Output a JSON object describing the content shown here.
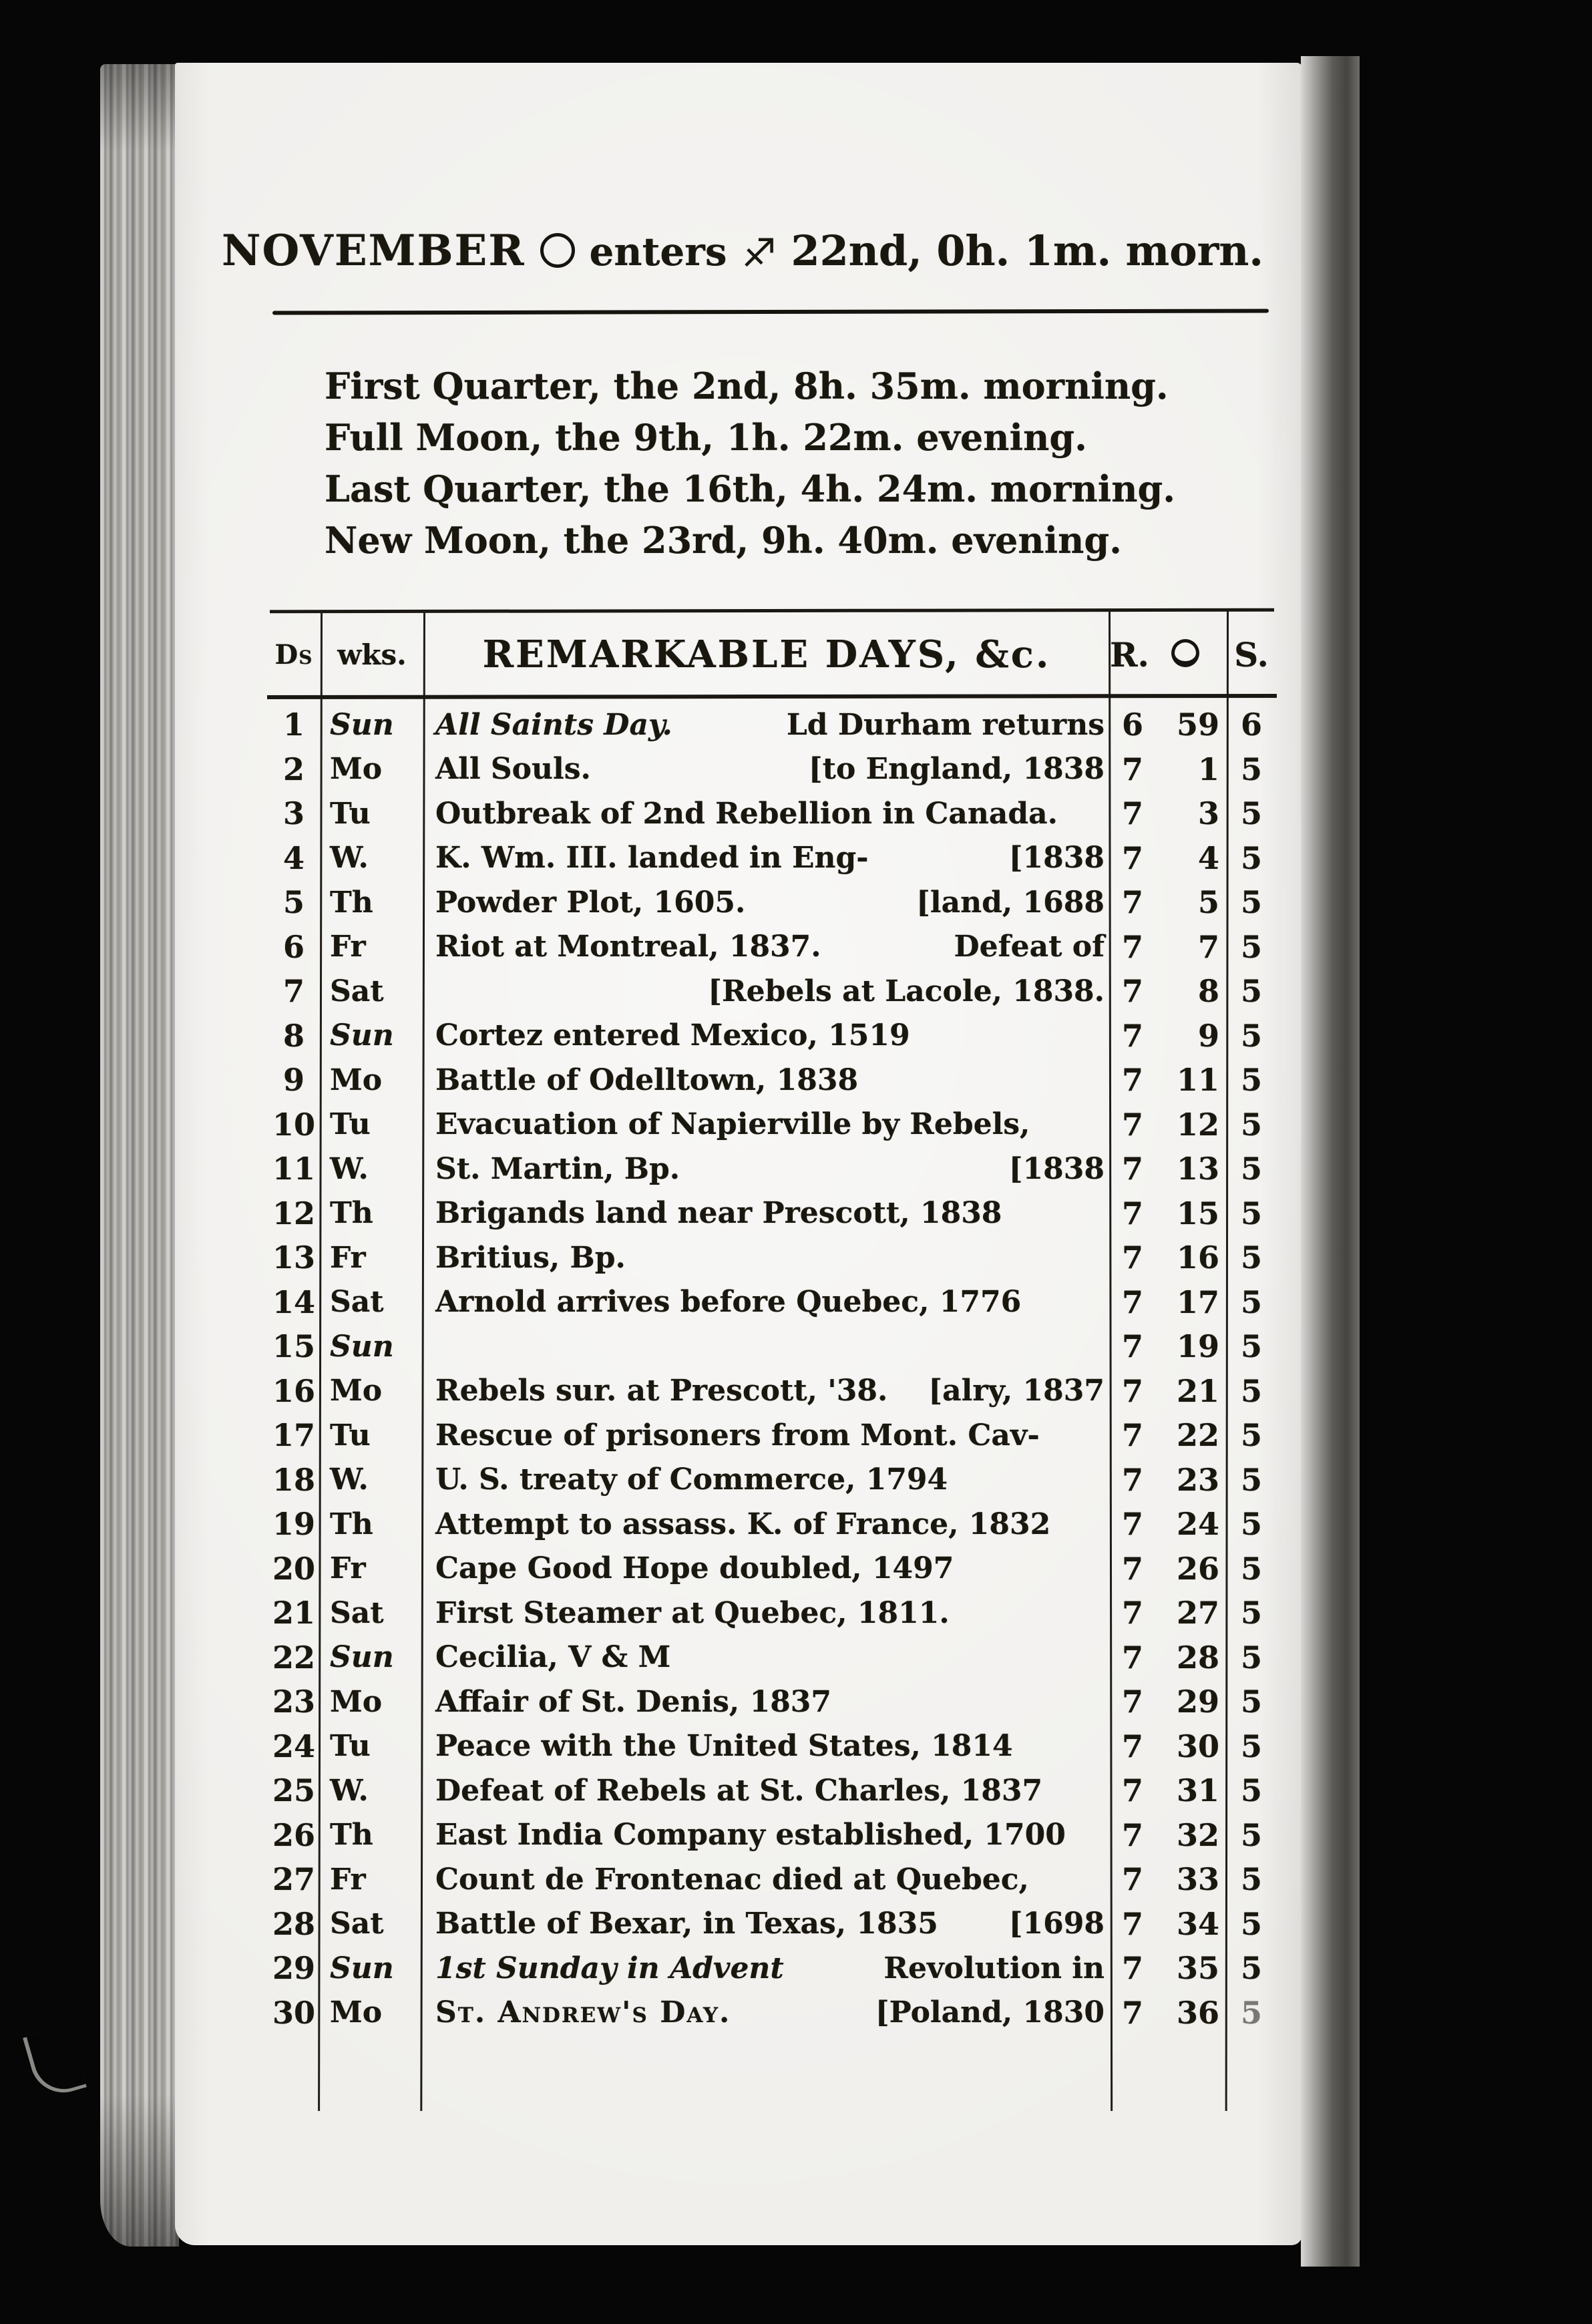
{
  "title": {
    "month": "NOVEMBER",
    "sun_symbol": "sun",
    "enters": "enters",
    "sign_symbol": "sagittarius",
    "date_text": "22nd, 0h. 1m. morn."
  },
  "phases": [
    "First Quarter, the 2nd, 8h. 35m. morning.",
    "Full Moon, the 9th, 1h. 22m. evening.",
    "Last Quarter, the 16th, 4h. 24m. morning.",
    "New Moon, the 23rd, 9h. 40m. evening."
  ],
  "table": {
    "headers": {
      "days": "Ds",
      "weeks": "wks.",
      "remarkable": "REMARKABLE DAYS, &c.",
      "rise": "R.",
      "moon_symbol": "moon",
      "set": "S."
    },
    "rows": [
      {
        "d": "1",
        "wk": "Sun",
        "wk_italic": true,
        "left": "All Saints Day.",
        "left_style": "italic",
        "right": "Ld Durham returns",
        "rise_h": "6",
        "rise_m": "59",
        "set": "6"
      },
      {
        "d": "2",
        "wk": "Mo",
        "wk_italic": false,
        "left": "All Souls.",
        "left_style": "",
        "right": "[to England, 1838",
        "rise_h": "7",
        "rise_m": "1",
        "set": "5"
      },
      {
        "d": "3",
        "wk": "Tu",
        "wk_italic": false,
        "left": "Outbreak of 2nd Rebellion in Canada.",
        "left_style": "",
        "right": "",
        "rise_h": "7",
        "rise_m": "3",
        "set": "5"
      },
      {
        "d": "4",
        "wk": "W.",
        "wk_italic": false,
        "left": "K. Wm. III. landed in Eng-",
        "left_style": "",
        "right": "[1838",
        "rise_h": "7",
        "rise_m": "4",
        "set": "5"
      },
      {
        "d": "5",
        "wk": "Th",
        "wk_italic": false,
        "left": "Powder Plot, 1605.",
        "left_style": "",
        "right": "[land, 1688",
        "rise_h": "7",
        "rise_m": "5",
        "set": "5"
      },
      {
        "d": "6",
        "wk": "Fr",
        "wk_italic": false,
        "left": "Riot at Montreal, 1837.",
        "left_style": "",
        "right": "Defeat of",
        "rise_h": "7",
        "rise_m": "7",
        "set": "5"
      },
      {
        "d": "7",
        "wk": "Sat",
        "wk_italic": false,
        "left": "",
        "left_style": "",
        "right": "[Rebels at Lacole, 1838.",
        "rise_h": "7",
        "rise_m": "8",
        "set": "5"
      },
      {
        "d": "8",
        "wk": "Sun",
        "wk_italic": true,
        "left": "Cortez entered Mexico, 1519",
        "left_style": "",
        "right": "",
        "rise_h": "7",
        "rise_m": "9",
        "set": "5"
      },
      {
        "d": "9",
        "wk": "Mo",
        "wk_italic": false,
        "left": "Battle of Odelltown, 1838",
        "left_style": "",
        "right": "",
        "rise_h": "7",
        "rise_m": "11",
        "set": "5"
      },
      {
        "d": "10",
        "wk": "Tu",
        "wk_italic": false,
        "left": "Evacuation of Napierville by Rebels,",
        "left_style": "",
        "right": "",
        "rise_h": "7",
        "rise_m": "12",
        "set": "5"
      },
      {
        "d": "11",
        "wk": "W.",
        "wk_italic": false,
        "left": "St. Martin, Bp.",
        "left_style": "",
        "right": "[1838",
        "rise_h": "7",
        "rise_m": "13",
        "set": "5"
      },
      {
        "d": "12",
        "wk": "Th",
        "wk_italic": false,
        "left": "Brigands land near Prescott, 1838",
        "left_style": "",
        "right": "",
        "rise_h": "7",
        "rise_m": "15",
        "set": "5"
      },
      {
        "d": "13",
        "wk": "Fr",
        "wk_italic": false,
        "left": "Britius, Bp.",
        "left_style": "",
        "right": "",
        "rise_h": "7",
        "rise_m": "16",
        "set": "5"
      },
      {
        "d": "14",
        "wk": "Sat",
        "wk_italic": false,
        "left": "Arnold arrives before Quebec, 1776",
        "left_style": "",
        "right": "",
        "rise_h": "7",
        "rise_m": "17",
        "set": "5"
      },
      {
        "d": "15",
        "wk": "Sun",
        "wk_italic": true,
        "left": "",
        "left_style": "",
        "right": "",
        "rise_h": "7",
        "rise_m": "19",
        "set": "5"
      },
      {
        "d": "16",
        "wk": "Mo",
        "wk_italic": false,
        "left": "Rebels sur. at Prescott, '38.",
        "left_style": "",
        "right": "[alry, 1837",
        "rise_h": "7",
        "rise_m": "21",
        "set": "5"
      },
      {
        "d": "17",
        "wk": "Tu",
        "wk_italic": false,
        "left": "Rescue of prisoners from Mont. Cav-",
        "left_style": "",
        "right": "",
        "rise_h": "7",
        "rise_m": "22",
        "set": "5"
      },
      {
        "d": "18",
        "wk": "W.",
        "wk_italic": false,
        "left": "U. S. treaty of Commerce, 1794",
        "left_style": "",
        "right": "",
        "rise_h": "7",
        "rise_m": "23",
        "set": "5"
      },
      {
        "d": "19",
        "wk": "Th",
        "wk_italic": false,
        "left": "Attempt to assass. K. of France, 1832",
        "left_style": "",
        "right": "",
        "rise_h": "7",
        "rise_m": "24",
        "set": "5"
      },
      {
        "d": "20",
        "wk": "Fr",
        "wk_italic": false,
        "left": "Cape Good Hope doubled, 1497",
        "left_style": "",
        "right": "",
        "rise_h": "7",
        "rise_m": "26",
        "set": "5"
      },
      {
        "d": "21",
        "wk": "Sat",
        "wk_italic": false,
        "left": "First Steamer at Quebec, 1811.",
        "left_style": "",
        "right": "",
        "rise_h": "7",
        "rise_m": "27",
        "set": "5"
      },
      {
        "d": "22",
        "wk": "Sun",
        "wk_italic": true,
        "left": "Cecilia, V & M",
        "left_style": "",
        "right": "",
        "rise_h": "7",
        "rise_m": "28",
        "set": "5"
      },
      {
        "d": "23",
        "wk": "Mo",
        "wk_italic": false,
        "left": "Affair of St. Denis, 1837",
        "left_style": "",
        "right": "",
        "rise_h": "7",
        "rise_m": "29",
        "set": "5"
      },
      {
        "d": "24",
        "wk": "Tu",
        "wk_italic": false,
        "left": "Peace with the United States, 1814",
        "left_style": "",
        "right": "",
        "rise_h": "7",
        "rise_m": "30",
        "set": "5"
      },
      {
        "d": "25",
        "wk": "W.",
        "wk_italic": false,
        "left": "Defeat of Rebels at St. Charles, 1837",
        "left_style": "",
        "right": "",
        "rise_h": "7",
        "rise_m": "31",
        "set": "5"
      },
      {
        "d": "26",
        "wk": "Th",
        "wk_italic": false,
        "left": "East India Company established, 1700",
        "left_style": "",
        "right": "",
        "rise_h": "7",
        "rise_m": "32",
        "set": "5"
      },
      {
        "d": "27",
        "wk": "Fr",
        "wk_italic": false,
        "left": "Count de Frontenac died at Quebec,",
        "left_style": "",
        "right": "",
        "rise_h": "7",
        "rise_m": "33",
        "set": "5"
      },
      {
        "d": "28",
        "wk": "Sat",
        "wk_italic": false,
        "left": "Battle of Bexar, in Texas, 1835",
        "left_style": "",
        "right": "[1698",
        "rise_h": "7",
        "rise_m": "34",
        "set": "5"
      },
      {
        "d": "29",
        "wk": "Sun",
        "wk_italic": true,
        "left": "1st Sunday in Advent",
        "left_style": "italic",
        "right": "Revolution in",
        "rise_h": "7",
        "rise_m": "35",
        "set": "5"
      },
      {
        "d": "30",
        "wk": "Mo",
        "wk_italic": false,
        "left": "St. Andrew's Day.",
        "left_style": "smallcaps",
        "right": "[Poland, 1830",
        "rise_h": "7",
        "rise_m": "36",
        "set": "5",
        "faded": true
      }
    ]
  }
}
